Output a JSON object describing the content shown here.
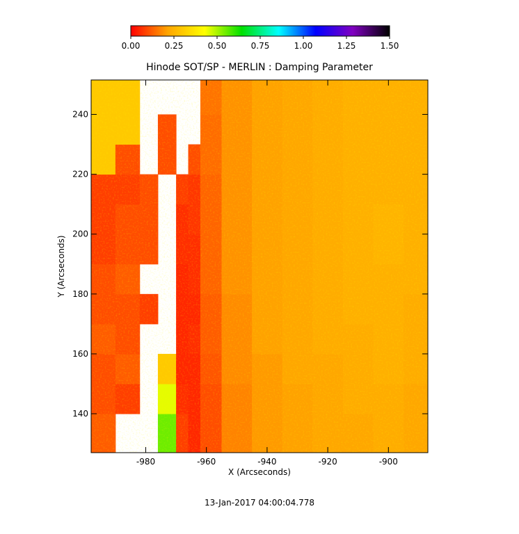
{
  "chart_data": {
    "type": "heatmap",
    "title": "Hinode SOT/SP - MERLIN : Damping Parameter",
    "xlabel": "X (Arcseconds)",
    "ylabel": "Y (Arcseconds)",
    "annotation": "13-Jan-2017 04:00:04.778",
    "x_edges": [
      -998,
      -990,
      -982,
      -976,
      -970,
      -966,
      -962,
      -955,
      -945,
      -935,
      -925,
      -915,
      -905,
      -895,
      -887
    ],
    "y_edges": [
      127,
      140,
      150,
      160,
      170,
      180,
      190,
      200,
      210,
      220,
      230,
      240,
      251.5
    ],
    "z": [
      [
        0.12,
        null,
        null,
        0.55,
        0.08,
        0.05,
        0.1,
        0.17,
        0.2,
        0.21,
        0.22,
        0.22,
        0.23,
        0.22
      ],
      [
        0.1,
        0.08,
        null,
        0.45,
        0.06,
        0.05,
        0.1,
        0.17,
        0.2,
        0.21,
        0.22,
        0.23,
        0.23,
        0.22
      ],
      [
        0.1,
        0.12,
        null,
        0.3,
        0.05,
        0.05,
        0.11,
        0.18,
        0.2,
        0.22,
        0.22,
        0.23,
        0.24,
        0.23
      ],
      [
        0.12,
        0.1,
        null,
        null,
        0.05,
        0.06,
        0.12,
        0.18,
        0.21,
        0.22,
        0.23,
        0.23,
        0.24,
        0.23
      ],
      [
        0.1,
        0.1,
        0.08,
        null,
        0.05,
        0.05,
        0.12,
        0.18,
        0.21,
        0.22,
        0.23,
        0.24,
        0.24,
        0.23
      ],
      [
        0.1,
        0.12,
        null,
        null,
        0.05,
        0.06,
        0.13,
        0.19,
        0.21,
        0.22,
        0.23,
        0.24,
        0.24,
        0.24
      ],
      [
        0.08,
        0.1,
        0.1,
        null,
        0.06,
        0.06,
        0.13,
        0.19,
        0.21,
        0.22,
        0.23,
        0.24,
        0.25,
        0.24
      ],
      [
        0.08,
        0.1,
        0.1,
        null,
        0.06,
        0.07,
        0.13,
        0.19,
        0.21,
        0.22,
        0.23,
        0.24,
        0.25,
        0.24
      ],
      [
        0.08,
        0.08,
        0.1,
        null,
        0.08,
        0.07,
        0.13,
        0.19,
        0.21,
        0.22,
        0.23,
        0.24,
        0.24,
        0.24
      ],
      [
        0.3,
        0.1,
        null,
        0.1,
        null,
        0.1,
        0.14,
        0.19,
        0.21,
        0.22,
        0.23,
        0.24,
        0.24,
        0.24
      ],
      [
        0.3,
        0.3,
        null,
        0.1,
        null,
        null,
        0.14,
        0.19,
        0.21,
        0.22,
        0.23,
        0.24,
        0.24,
        0.24
      ],
      [
        0.3,
        0.3,
        null,
        null,
        null,
        null,
        0.15,
        0.19,
        0.21,
        0.22,
        0.23,
        0.24,
        0.24,
        0.24
      ]
    ],
    "xlim": [
      -998,
      -887
    ],
    "ylim": [
      127,
      251.5
    ],
    "xticks": [
      -980,
      -960,
      -940,
      -920,
      -900
    ],
    "yticks": [
      140,
      160,
      180,
      200,
      220,
      240
    ],
    "colorbar": {
      "clim": [
        0,
        1.5
      ],
      "colormap": [
        "#ff0000",
        "#ffa500",
        "#ffff00",
        "#00e000",
        "#00ffff",
        "#0000ff",
        "#8000c0",
        "#000000"
      ],
      "ticks": [
        {
          "value": 0,
          "label": "0.00"
        },
        {
          "value": 0.25,
          "label": "0.25"
        },
        {
          "value": 0.5,
          "label": "0.50"
        },
        {
          "value": 0.75,
          "label": "0.75"
        },
        {
          "value": 1,
          "label": "1.00"
        },
        {
          "value": 1.25,
          "label": "1.25"
        },
        {
          "value": 1.5,
          "label": "1.50"
        }
      ]
    }
  }
}
